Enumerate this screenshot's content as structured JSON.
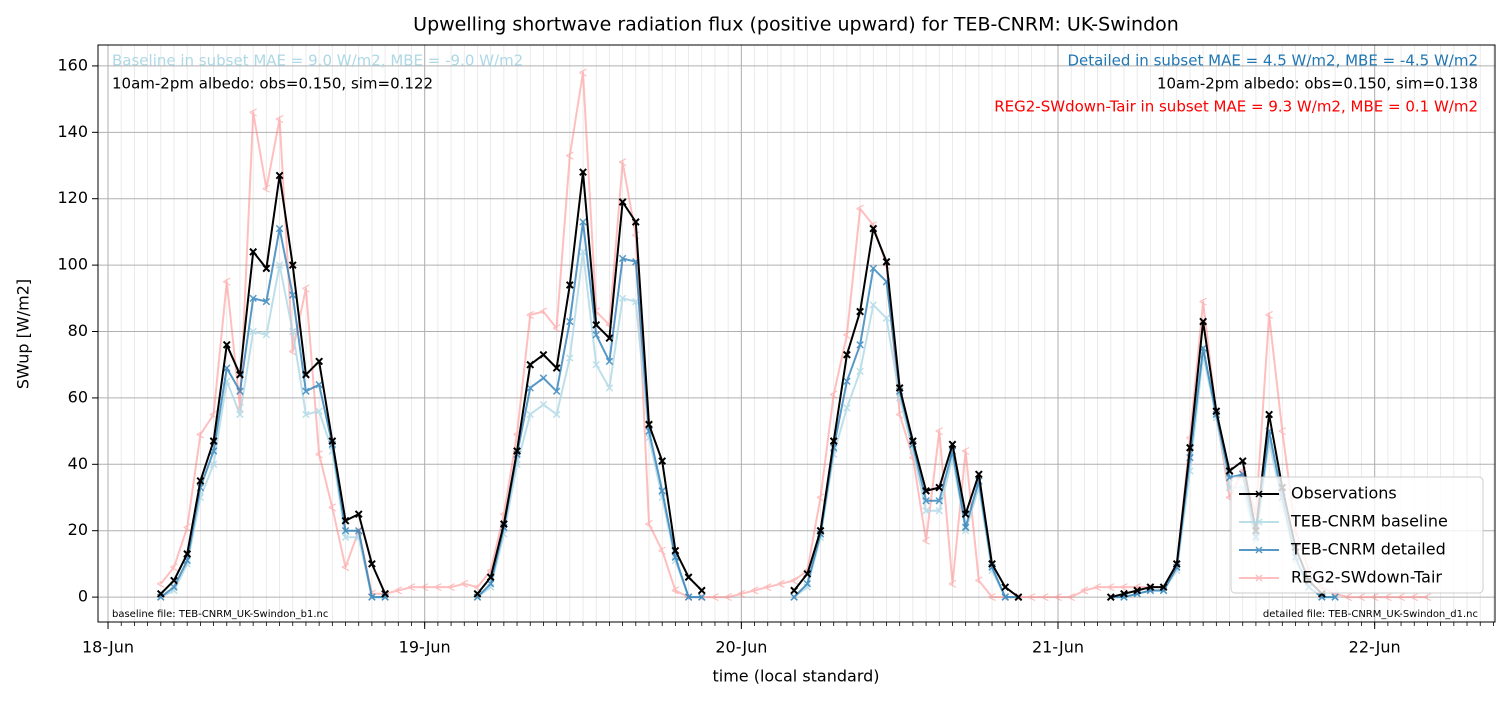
{
  "chart_data": {
    "type": "line",
    "title": "Upwelling shortwave radiation flux (positive upward) for TEB-CNRM: UK-Swindon",
    "xlabel": "time (local standard)",
    "ylabel": "SWup [W/m2]",
    "xlim": [
      -0.76,
      105.12
    ],
    "ylim": [
      -7.5,
      166.3
    ],
    "xticks": [
      {
        "value": 0,
        "label": "18-Jun"
      },
      {
        "value": 24,
        "label": "19-Jun"
      },
      {
        "value": 48,
        "label": "20-Jun"
      },
      {
        "value": 72,
        "label": "21-Jun"
      },
      {
        "value": 96,
        "label": "22-Jun"
      }
    ],
    "xminorticks": [
      0,
      1,
      2,
      3,
      4,
      5,
      6,
      7,
      8,
      9,
      10,
      11,
      12,
      13,
      14,
      15,
      16,
      17,
      18,
      19,
      20,
      21,
      22,
      23,
      24,
      25,
      26,
      27,
      28,
      29,
      30,
      31,
      32,
      33,
      34,
      35,
      36,
      37,
      38,
      39,
      40,
      41,
      42,
      43,
      44,
      45,
      46,
      47,
      48,
      49,
      50,
      51,
      52,
      53,
      54,
      55,
      56,
      57,
      58,
      59,
      60,
      61,
      62,
      63,
      64,
      65,
      66,
      67,
      68,
      69,
      70,
      71,
      72,
      73,
      74,
      75,
      76,
      77,
      78,
      79,
      80,
      81,
      82,
      83,
      84,
      85,
      86,
      87,
      88,
      89,
      90,
      91,
      92,
      93,
      94,
      95,
      96,
      97,
      98,
      99,
      100,
      101,
      102,
      103,
      104,
      105
    ],
    "yticks": [
      0,
      20,
      40,
      60,
      80,
      100,
      120,
      140,
      160
    ],
    "grid": true,
    "legend": "lower right",
    "x": [
      4,
      5,
      6,
      7,
      8,
      9,
      10,
      11,
      12,
      13,
      14,
      15,
      16,
      17,
      18,
      19,
      20,
      21,
      22,
      23,
      24,
      25,
      26,
      27,
      28,
      29,
      30,
      31,
      32,
      33,
      34,
      35,
      36,
      37,
      38,
      39,
      40,
      41,
      42,
      43,
      44,
      45,
      46,
      47,
      48,
      49,
      50,
      51,
      52,
      53,
      54,
      55,
      56,
      57,
      58,
      59,
      60,
      61,
      62,
      63,
      64,
      65,
      66,
      67,
      68,
      69,
      70,
      71,
      72,
      73,
      74,
      75,
      76,
      77,
      78,
      79,
      80,
      81,
      82,
      83,
      84,
      85,
      86,
      87,
      88,
      89,
      90,
      91,
      92,
      93,
      94,
      95,
      96,
      97,
      98,
      99,
      100
    ],
    "series": [
      {
        "name": "Observations",
        "color": "#000000",
        "values": [
          1,
          5,
          13,
          35,
          47,
          76,
          67,
          104,
          99,
          127,
          100,
          67,
          71,
          47,
          23,
          25,
          10,
          1,
          null,
          null,
          null,
          null,
          null,
          null,
          1,
          6,
          22,
          44,
          70,
          73,
          69,
          94,
          128,
          82,
          78,
          119,
          113,
          52,
          41,
          14,
          6,
          2,
          null,
          null,
          null,
          null,
          null,
          null,
          2,
          7,
          20,
          47,
          73,
          86,
          111,
          101,
          63,
          47,
          32,
          33,
          46,
          25,
          37,
          10,
          3,
          0,
          null,
          null,
          null,
          null,
          null,
          null,
          0,
          1,
          2,
          3,
          3,
          10,
          45,
          83,
          56,
          38,
          41,
          20,
          55,
          33,
          15,
          5,
          1,
          null,
          null,
          null,
          null,
          null,
          null,
          null,
          null
        ]
      },
      {
        "name": "TEB-CNRM baseline",
        "color": "#add8e6",
        "values": [
          0,
          2,
          10,
          30,
          40,
          65,
          55,
          80,
          79,
          100,
          80,
          55,
          56,
          44,
          18,
          18,
          0,
          0,
          null,
          null,
          null,
          null,
          null,
          null,
          0,
          3,
          19,
          40,
          55,
          58,
          55,
          72,
          104,
          70,
          63,
          90,
          89,
          48,
          30,
          11,
          0,
          0,
          null,
          null,
          null,
          null,
          null,
          null,
          0,
          3,
          18,
          43,
          57,
          68,
          88,
          84,
          60,
          44,
          26,
          26,
          42,
          20,
          33,
          8,
          0,
          0,
          null,
          null,
          null,
          null,
          null,
          null,
          0,
          0,
          1,
          2,
          2,
          8,
          38,
          73,
          54,
          33,
          33,
          17,
          47,
          28,
          11,
          3,
          0,
          0,
          null,
          null,
          null,
          null,
          null,
          null,
          null
        ]
      },
      {
        "name": "TEB-CNRM detailed",
        "color": "#1f77b4",
        "values": [
          0,
          3,
          11,
          33,
          44,
          69,
          62,
          90,
          89,
          111,
          91,
          62,
          64,
          46,
          20,
          20,
          0,
          0,
          null,
          null,
          null,
          null,
          null,
          null,
          0,
          4,
          21,
          43,
          63,
          66,
          62,
          83,
          113,
          79,
          71,
          102,
          101,
          50,
          32,
          12,
          0,
          0,
          null,
          null,
          null,
          null,
          null,
          null,
          0,
          4,
          19,
          45,
          65,
          76,
          99,
          95,
          62,
          46,
          29,
          29,
          44,
          21,
          35,
          9,
          0,
          0,
          null,
          null,
          null,
          null,
          null,
          null,
          0,
          0,
          1,
          2,
          2,
          9,
          42,
          75,
          55,
          36,
          37,
          18,
          50,
          30,
          12,
          3,
          0,
          0,
          null,
          null,
          null,
          null,
          null,
          null,
          null
        ]
      },
      {
        "name": "REG2-SWdown-Tair",
        "color": "#ff8080",
        "values": [
          4,
          9,
          21,
          49,
          55,
          95,
          57,
          146,
          123,
          144,
          74,
          93,
          43,
          27,
          9,
          20,
          1,
          1,
          2,
          3,
          3,
          3,
          3,
          4,
          3,
          8,
          25,
          49,
          85,
          86,
          81,
          133,
          158,
          86,
          82,
          131,
          109,
          22,
          14,
          2,
          0,
          0,
          0,
          0,
          1,
          2,
          3,
          4,
          5,
          8,
          30,
          61,
          79,
          117,
          112,
          100,
          55,
          42,
          17,
          50,
          4,
          44,
          5,
          0,
          0,
          0,
          0,
          0,
          0,
          0,
          2,
          3,
          3,
          3,
          3,
          3,
          3,
          9,
          48,
          89,
          55,
          30,
          38,
          25,
          85,
          50,
          20,
          8,
          3,
          1,
          0,
          0,
          0,
          0,
          0,
          0,
          0
        ]
      }
    ],
    "annotations": [
      {
        "text": "Baseline in subset MAE = 9.0 W/m2, MBE = -9.0 W/m2",
        "color": "#add8e6"
      },
      {
        "text": "10am-2pm albedo: obs=0.150, sim=0.122",
        "color": "#000000"
      },
      {
        "text": "Detailed in subset MAE = 4.5 W/m2, MBE = -4.5 W/m2",
        "color": "#1f77b4"
      },
      {
        "text": "10am-2pm albedo: obs=0.150, sim=0.138",
        "color": "#000000"
      },
      {
        "text": "REG2-SWdown-Tair in subset MAE = 9.3 W/m2, MBE = 0.1 W/m2",
        "color": "#ff0000"
      },
      {
        "text": "baseline file: TEB-CNRM_UK-Swindon_b1.nc",
        "color": "#000000"
      },
      {
        "text": "detailed file: TEB-CNRM_UK-Swindon_d1.nc",
        "color": "#000000"
      }
    ]
  }
}
